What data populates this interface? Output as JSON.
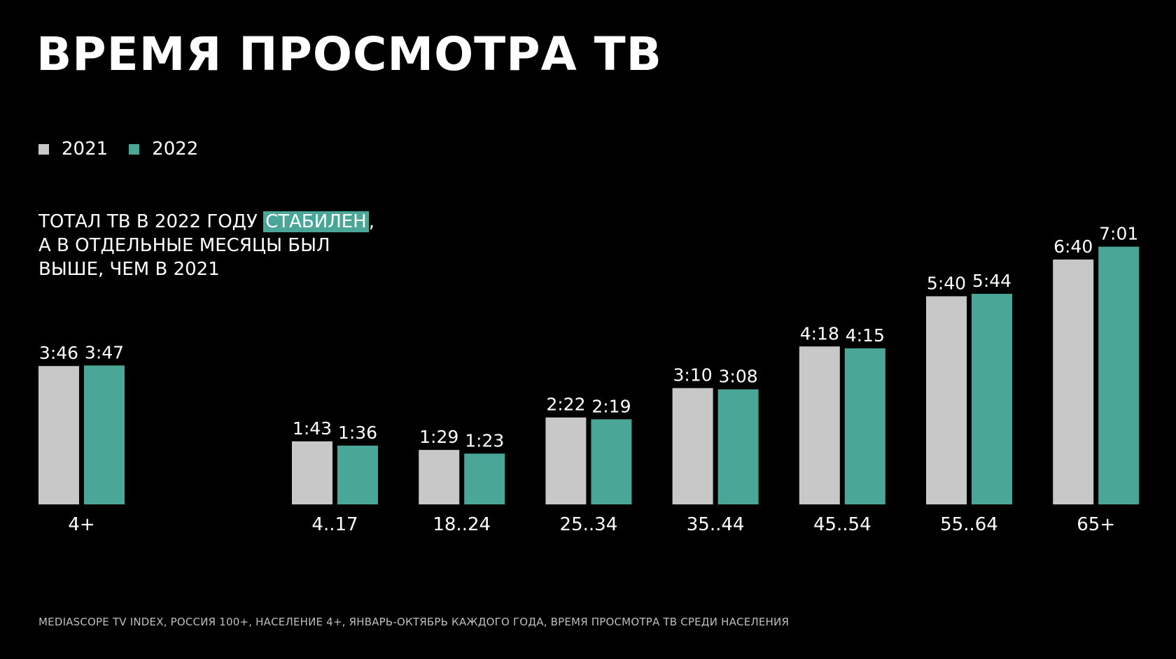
{
  "title": "ВРЕМЯ ПРОСМОТРА ТВ",
  "legend": [
    {
      "label": "2021",
      "color": "#c8c8c8"
    },
    {
      "label": "2022",
      "color": "#4aa797"
    }
  ],
  "subtitle": {
    "line1_before": "ТОТАЛ ТВ В 2022 ГОДУ ",
    "line1_highlight": "СТАБИЛЕН",
    "line1_after": ",",
    "line2": "А В ОТДЕЛЬНЫЕ МЕСЯЦЫ БЫЛ",
    "line3": "ВЫШЕ, ЧЕМ В 2021"
  },
  "footnote": "MEDIASCOPE TV INDEX, РОССИЯ 100+, НАСЕЛЕНИЕ 4+, ЯНВАРЬ-ОКТЯБРЬ КАЖДОГО ГОДА, ВРЕМЯ ПРОСМОТРА ТВ СРЕДИ НАСЕЛЕНИЯ",
  "chart_data": {
    "type": "bar",
    "title": "ВРЕМЯ ПРОСМОТРА ТВ",
    "xlabel": "",
    "ylabel": "",
    "unit": "hours:minutes",
    "ylim": [
      0,
      7.5
    ],
    "categories": [
      "4+",
      "4..17",
      "18..24",
      "25..34",
      "35..44",
      "45..54",
      "55..64",
      "65+"
    ],
    "series": [
      {
        "name": "2021",
        "color": "#c8c8c8",
        "labels": [
          "3:46",
          "1:43",
          "1:29",
          "2:22",
          "3:10",
          "4:18",
          "5:40",
          "6:40"
        ],
        "values": [
          3.767,
          1.717,
          1.483,
          2.367,
          3.167,
          4.3,
          5.667,
          6.667
        ]
      },
      {
        "name": "2022",
        "color": "#4aa797",
        "labels": [
          "3:47",
          "1:36",
          "1:23",
          "2:19",
          "3:08",
          "4:15",
          "5:44",
          "7:01"
        ],
        "values": [
          3.783,
          1.6,
          1.383,
          2.317,
          3.133,
          4.25,
          5.733,
          7.017
        ]
      }
    ]
  }
}
